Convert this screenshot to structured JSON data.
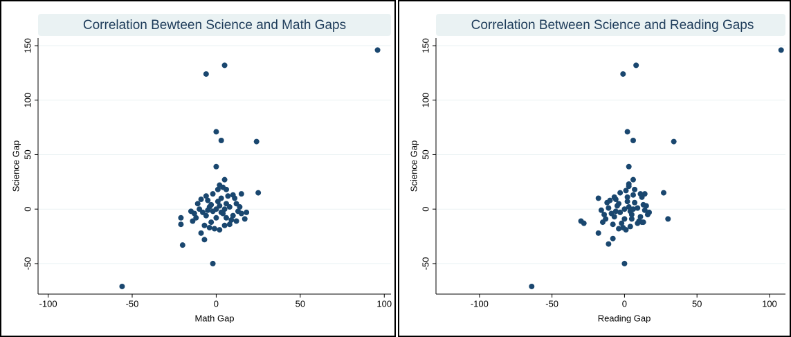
{
  "chart_data": [
    {
      "type": "scatter",
      "title": "Correlation Bewteen Science and Math Gaps",
      "xlabel": "Math Gap",
      "ylabel": "Science Gap",
      "color": "#1a476f",
      "grid": true,
      "xlim": [
        -106,
        104
      ],
      "ylim": [
        -78,
        157
      ],
      "xticks": [
        -100,
        -50,
        0,
        50,
        100
      ],
      "yticks": [
        -50,
        0,
        50,
        100,
        150
      ],
      "x": [
        96,
        5,
        -6,
        0,
        3,
        24,
        -56,
        -2,
        0,
        25,
        5,
        18,
        17,
        -20,
        -21,
        -21,
        -9,
        -7,
        15,
        0,
        2,
        -2,
        4,
        -4,
        6,
        -6,
        8,
        -8,
        10,
        -10,
        12,
        -12,
        3,
        -3,
        5,
        -5,
        7,
        -7,
        1,
        -1,
        9,
        -9,
        11,
        13,
        -13,
        4,
        2,
        -14,
        14,
        6,
        -2,
        0,
        1,
        -3,
        3,
        8,
        -11,
        5,
        -5,
        10,
        2,
        -4,
        15,
        6,
        -15,
        12,
        -6
      ],
      "values": [
        146,
        132,
        124,
        71,
        63,
        62,
        -71,
        -50,
        39,
        15,
        27,
        -3,
        -9,
        -33,
        -8,
        -14,
        -22,
        -28,
        14,
        0,
        3,
        -2,
        -4,
        2,
        5,
        -6,
        2,
        -3,
        -6,
        0,
        5,
        -8,
        10,
        -12,
        -15,
        8,
        12,
        -15,
        18,
        -18,
        -10,
        9,
        10,
        -2,
        -4,
        20,
        -19,
        -11,
        2,
        -8,
        14,
        -8,
        7,
        4,
        -3,
        -14,
        5,
        0,
        -1,
        13,
        22,
        -17,
        -4,
        18,
        -2,
        -11,
        12
      ]
    },
    {
      "type": "scatter",
      "title": "Correlation Between Science and Reading Gaps",
      "xlabel": "Reading Gap",
      "ylabel": "Science Gap",
      "color": "#1a476f",
      "grid": true,
      "xlim": [
        -130,
        111
      ],
      "ylim": [
        -78,
        157
      ],
      "xticks": [
        -100,
        -50,
        0,
        50,
        100
      ],
      "yticks": [
        -50,
        0,
        50,
        100,
        150
      ],
      "x": [
        108,
        8,
        -1,
        2,
        6,
        34,
        -64,
        0,
        3,
        27,
        6,
        30,
        -18,
        -18,
        -28,
        -30,
        -11,
        -8,
        17,
        14,
        12,
        0,
        3,
        -3,
        5,
        -5,
        7,
        -7,
        9,
        -9,
        11,
        -11,
        13,
        -13,
        2,
        -2,
        4,
        -6,
        6,
        -8,
        1,
        -1,
        10,
        -10,
        12,
        14,
        -14,
        3,
        1,
        -15,
        15,
        5,
        -3,
        0,
        2,
        -4,
        4,
        9,
        -12,
        6,
        -6,
        11,
        3,
        -4,
        16,
        7,
        -16,
        13,
        -7
      ],
      "values": [
        146,
        132,
        124,
        71,
        63,
        62,
        -71,
        -50,
        39,
        15,
        27,
        -9,
        10,
        -22,
        -13,
        -11,
        -32,
        -27,
        -3,
        14,
        -12,
        0,
        2,
        -3,
        -5,
        3,
        6,
        -7,
        1,
        -4,
        -7,
        1,
        4,
        -9,
        11,
        -13,
        -16,
        9,
        13,
        -14,
        17,
        -17,
        -11,
        8,
        11,
        -1,
        -5,
        21,
        -19,
        -12,
        3,
        -9,
        15,
        -9,
        7,
        5,
        -2,
        -13,
        6,
        0,
        -2,
        14,
        23,
        -18,
        -5,
        18,
        -1,
        -12,
        11
      ]
    }
  ]
}
